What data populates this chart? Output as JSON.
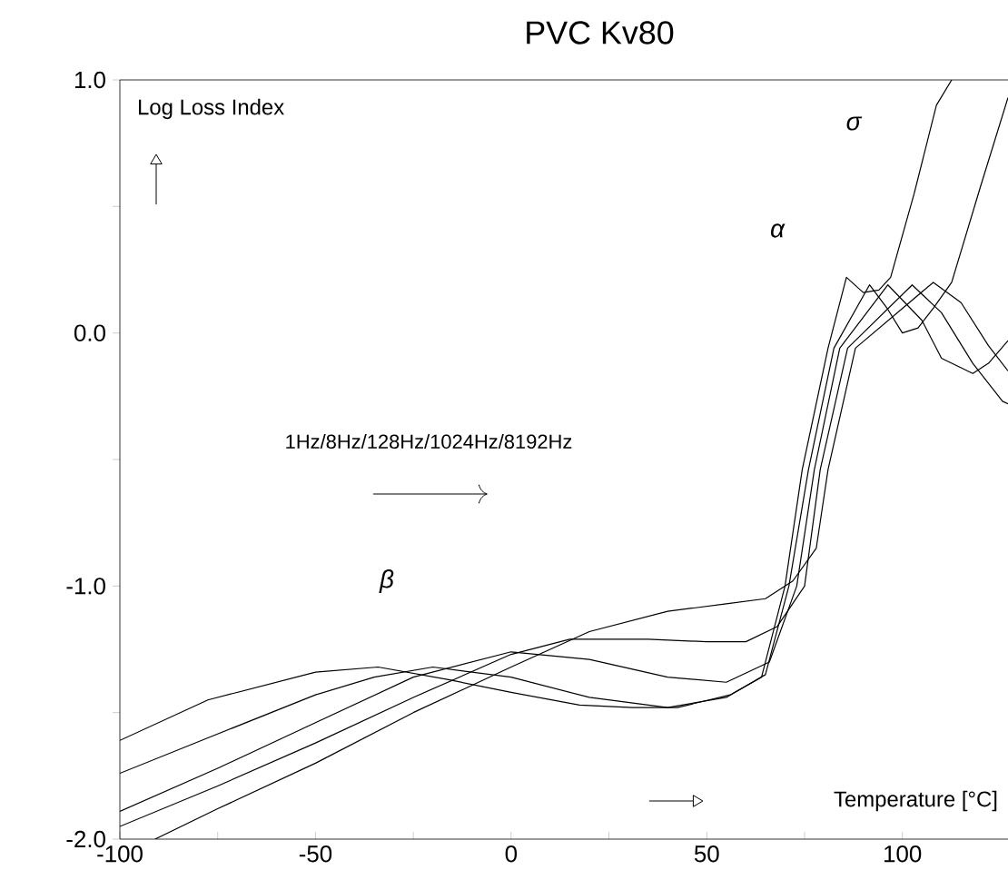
{
  "chart_data": {
    "type": "line",
    "title": "PVC Kv80",
    "xlabel": "Temperature [°C]",
    "ylabel": "Log Loss Index",
    "xlim": [
      -100,
      127
    ],
    "ylim": [
      -2,
      1
    ],
    "xticks": [
      -100,
      {
        "value": -75,
        "label": null
      },
      -50,
      {
        "value": -25,
        "label": null
      },
      0,
      {
        "value": 25,
        "label": null
      },
      50,
      {
        "value": 75,
        "label": null
      },
      100
    ],
    "yticks": [
      {
        "value": -2,
        "label": "-2.0"
      },
      {
        "value": -1.5,
        "label": null
      },
      {
        "value": -1,
        "label": "-1.0"
      },
      {
        "value": -0.5,
        "label": null
      },
      {
        "value": 0,
        "label": "0.0"
      },
      {
        "value": 0.5,
        "label": null
      },
      {
        "value": 1,
        "label": "1.0"
      }
    ],
    "annotations": [
      "1Hz/8Hz/128Hz/1024Hz/8192Hz",
      "σ",
      "α",
      "β"
    ],
    "series": [
      {
        "color": "#000000",
        "x": [
          -100,
          -77.5,
          -50,
          -34,
          -16,
          0,
          17.5,
          31,
          42.5,
          56,
          64,
          70,
          74.4,
          81,
          85.7,
          90,
          94,
          97,
          103,
          108.7,
          112.6
        ],
        "values": [
          -1.61,
          -1.45,
          -1.34,
          -1.32,
          -1.37,
          -1.42,
          -1.47,
          -1.48,
          -1.48,
          -1.43,
          -1.36,
          -1.0,
          -0.54,
          -0.06,
          0.22,
          0.16,
          0.17,
          0.22,
          0.55,
          0.9,
          1.0
        ]
      },
      {
        "color": "#000000",
        "x": [
          -100,
          -77.5,
          -50,
          -35,
          -20,
          0,
          20,
          40,
          55,
          65,
          71,
          76,
          82.5,
          91.6,
          96,
          100,
          104,
          108,
          112.6,
          120,
          127
        ],
        "values": [
          -1.74,
          -1.6,
          -1.43,
          -1.36,
          -1.32,
          -1.36,
          -1.44,
          -1.48,
          -1.44,
          -1.35,
          -1.0,
          -0.54,
          -0.06,
          0.19,
          0.1,
          0.0,
          0.02,
          0.1,
          0.2,
          0.58,
          0.93
        ]
      },
      {
        "color": "#000000",
        "x": [
          -100,
          -75,
          -50,
          -25,
          0,
          20,
          40,
          55,
          66,
          73,
          77.5,
          84,
          96.3,
          105,
          110,
          118,
          122,
          127
        ],
        "values": [
          -1.89,
          -1.72,
          -1.54,
          -1.36,
          -1.26,
          -1.29,
          -1.36,
          -1.38,
          -1.3,
          -1.0,
          -0.54,
          -0.06,
          0.19,
          0.05,
          -0.1,
          -0.16,
          -0.12,
          -0.03
        ]
      },
      {
        "color": "#000000",
        "x": [
          -100,
          -75,
          -50,
          -25,
          0,
          15,
          35,
          50,
          60,
          68,
          75,
          79,
          86,
          102.5,
          110,
          118,
          125.6,
          127
        ],
        "values": [
          -1.95,
          -1.79,
          -1.62,
          -1.44,
          -1.27,
          -1.21,
          -1.21,
          -1.22,
          -1.22,
          -1.16,
          -1.0,
          -0.54,
          -0.06,
          0.19,
          0.08,
          -0.12,
          -0.27,
          -0.28
        ]
      },
      {
        "color": "#000000",
        "x": [
          -91,
          -75,
          -50,
          -25,
          0,
          20,
          40,
          55,
          65,
          72,
          78,
          81,
          88,
          107.9,
          115,
          122,
          127
        ],
        "values": [
          -2.0,
          -1.88,
          -1.7,
          -1.5,
          -1.32,
          -1.18,
          -1.1,
          -1.07,
          -1.05,
          -0.98,
          -0.85,
          -0.54,
          -0.06,
          0.2,
          0.12,
          -0.05,
          -0.15
        ]
      }
    ]
  }
}
